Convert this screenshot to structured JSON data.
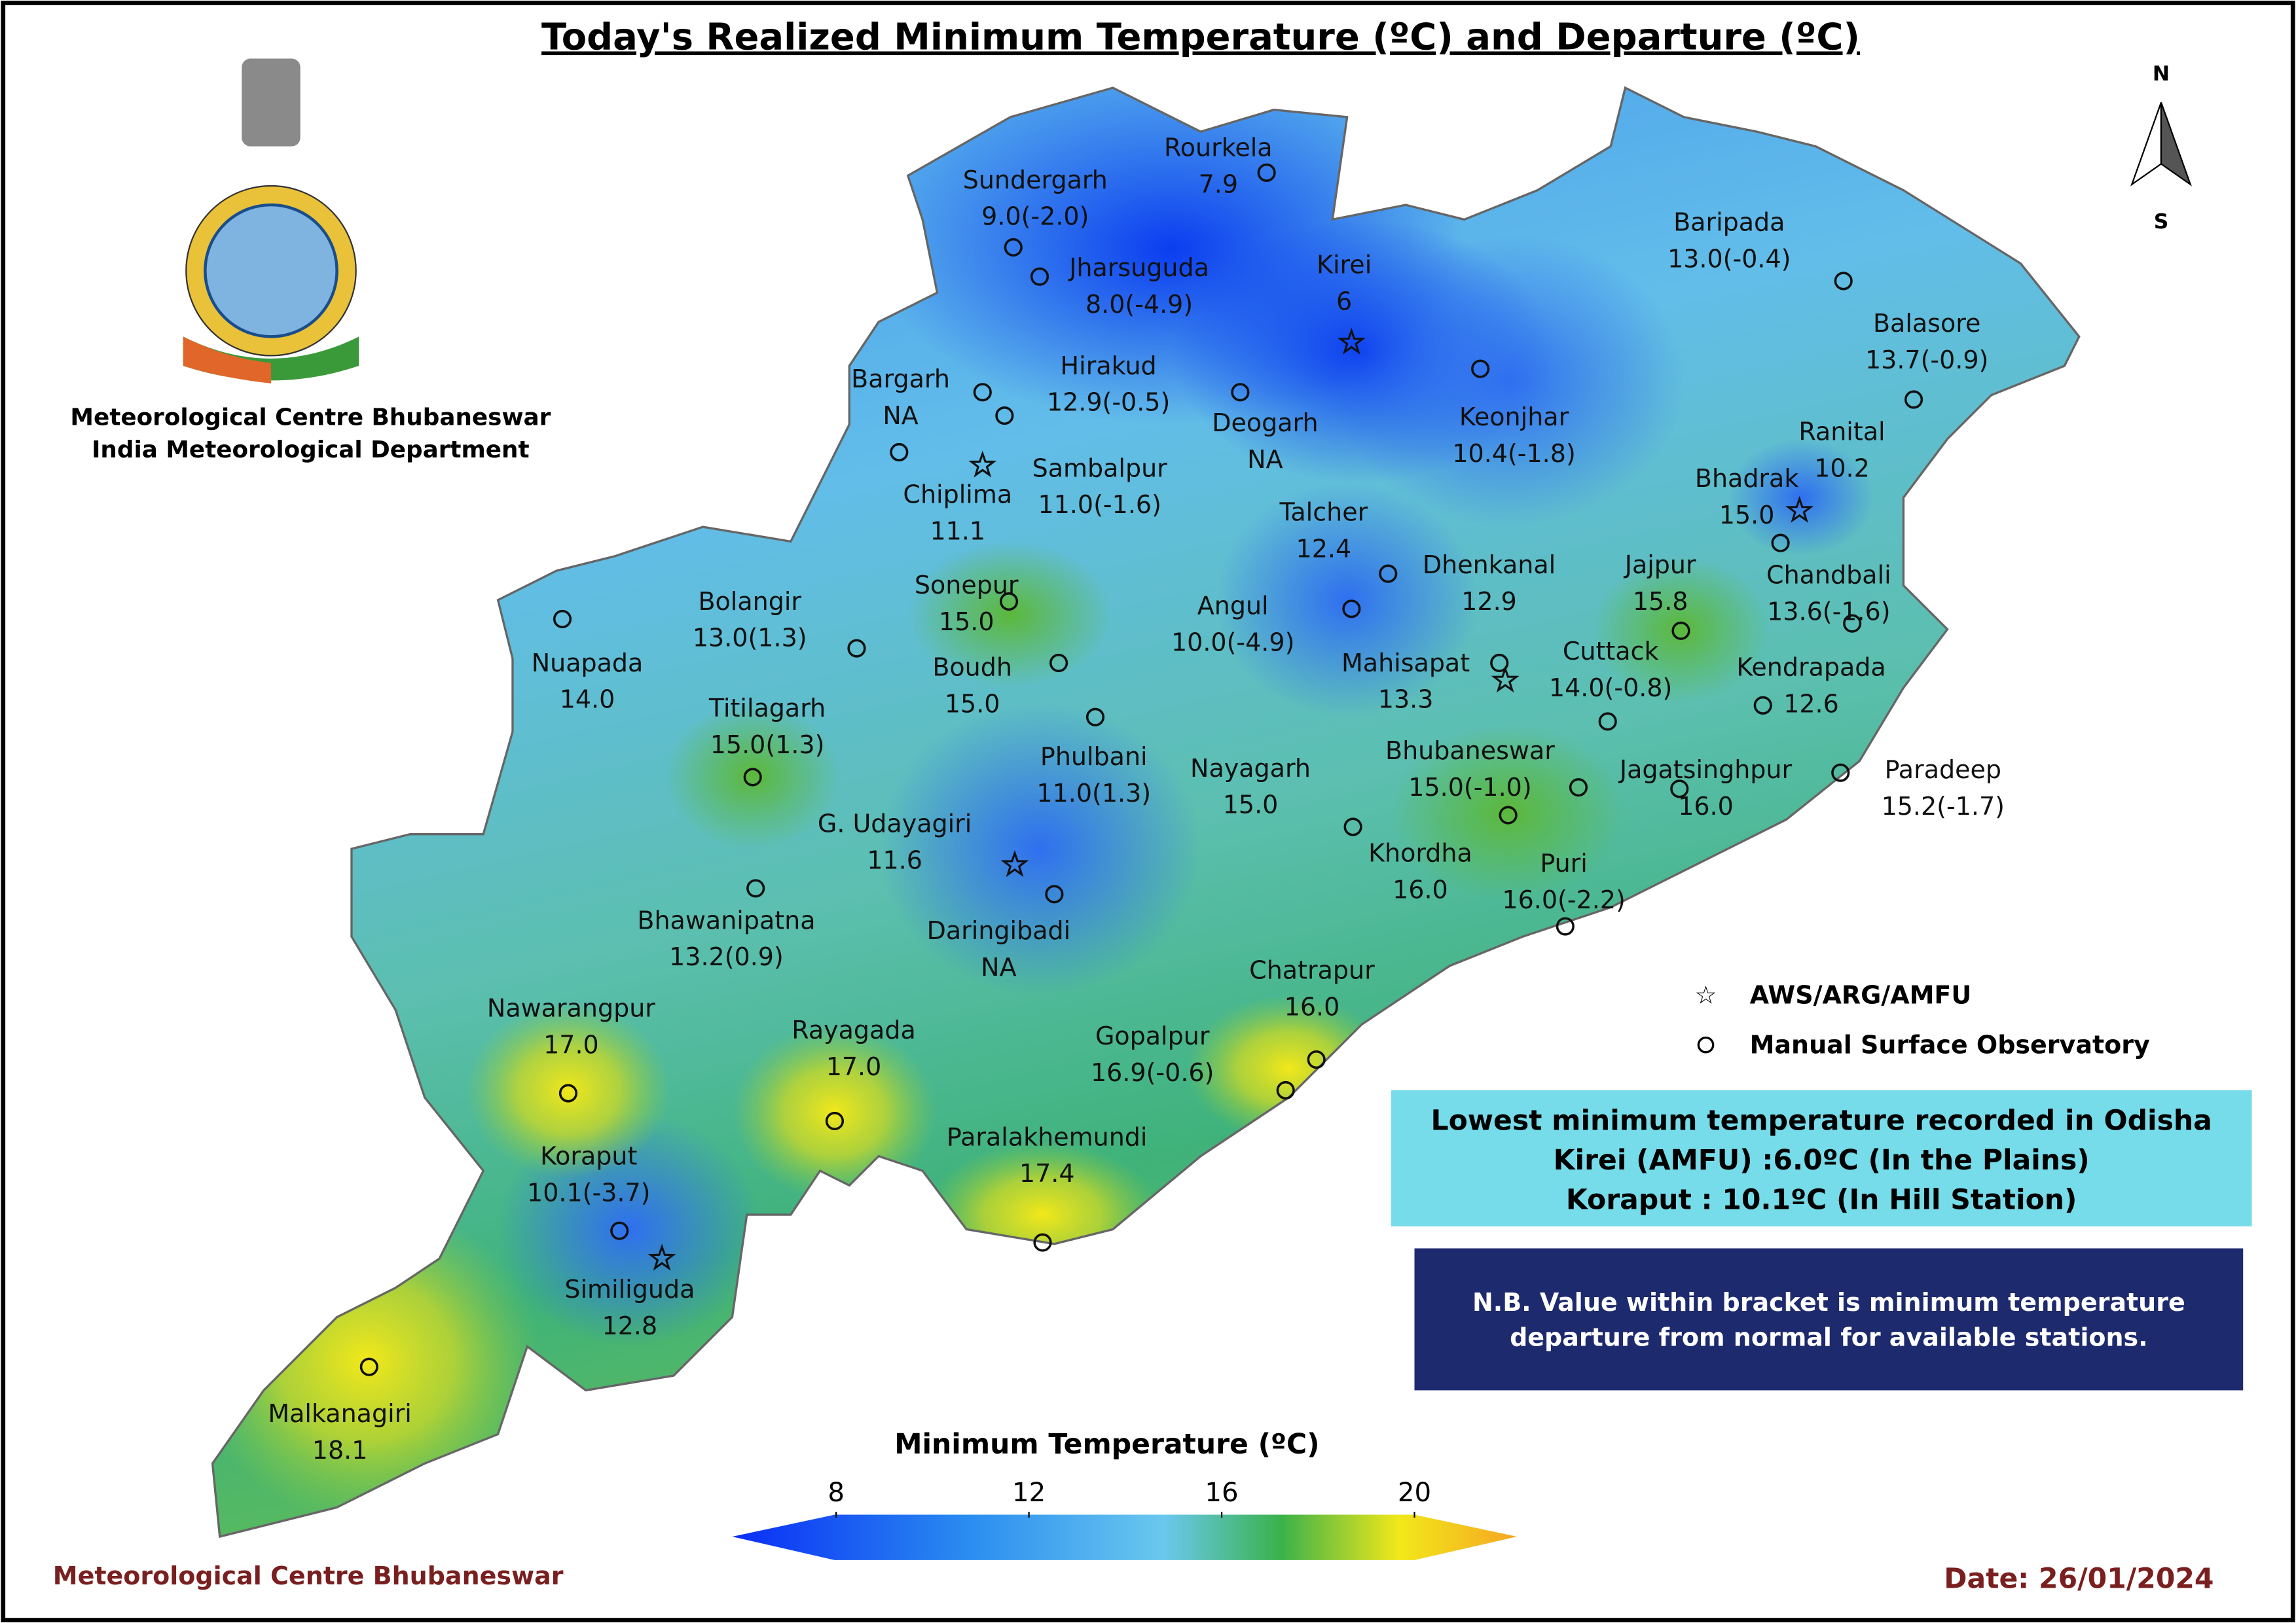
{
  "header": {
    "title": "Today's Realized Minimum Temperature (ºC) and Departure (ºC)"
  },
  "org": {
    "line1": "Meteorological Centre Bhubaneswar",
    "line2": "India Meteorological Department"
  },
  "north_arrow": {
    "n": "N",
    "s": "S"
  },
  "stations": [
    {
      "name": "Sundergarh",
      "value": "9.0(-2.0)"
    },
    {
      "name": "Rourkela",
      "value": "7.9"
    },
    {
      "name": "Jharsuguda",
      "value": "8.0(-4.9)"
    },
    {
      "name": "Kirei",
      "value": "6"
    },
    {
      "name": "Baripada",
      "value": "13.0(-0.4)"
    },
    {
      "name": "Balasore",
      "value": "13.7(-0.9)"
    },
    {
      "name": "Hirakud",
      "value": "12.9(-0.5)"
    },
    {
      "name": "Bargarh",
      "value": "NA"
    },
    {
      "name": "Deogarh",
      "value": "NA"
    },
    {
      "name": "Keonjhar",
      "value": "10.4(-1.8)"
    },
    {
      "name": "Ranital",
      "value": "10.2"
    },
    {
      "name": "Chiplima",
      "value": "11.1"
    },
    {
      "name": "Sambalpur",
      "value": "11.0(-1.6)"
    },
    {
      "name": "Bhadrak",
      "value": "15.0"
    },
    {
      "name": "Talcher",
      "value": "12.4"
    },
    {
      "name": "Dhenkanal",
      "value": "12.9"
    },
    {
      "name": "Jajpur",
      "value": "15.8"
    },
    {
      "name": "Chandbali",
      "value": "13.6(-1.6)"
    },
    {
      "name": "Sonepur",
      "value": "15.0"
    },
    {
      "name": "Bolangir",
      "value": "13.0(1.3)"
    },
    {
      "name": "Angul",
      "value": "10.0(-4.9)"
    },
    {
      "name": "Nuapada",
      "value": "14.0"
    },
    {
      "name": "Boudh",
      "value": "15.0"
    },
    {
      "name": "Mahisapat",
      "value": "13.3"
    },
    {
      "name": "Cuttack",
      "value": "14.0(-0.8)"
    },
    {
      "name": "Kendrapada",
      "value": "12.6"
    },
    {
      "name": "Titilagarh",
      "value": "15.0(1.3)"
    },
    {
      "name": "Phulbani",
      "value": "11.0(1.3)"
    },
    {
      "name": "Nayagarh",
      "value": "15.0"
    },
    {
      "name": "Bhubaneswar",
      "value": "15.0(-1.0)"
    },
    {
      "name": "Jagatsinghpur",
      "value": "16.0"
    },
    {
      "name": "Paradeep",
      "value": "15.2(-1.7)"
    },
    {
      "name": "G. Udayagiri",
      "value": "11.6"
    },
    {
      "name": "Khordha",
      "value": "16.0"
    },
    {
      "name": "Puri",
      "value": "16.0(-2.2)"
    },
    {
      "name": "Bhawanipatna",
      "value": "13.2(0.9)"
    },
    {
      "name": "Daringibadi",
      "value": "NA"
    },
    {
      "name": "Chatrapur",
      "value": "16.0"
    },
    {
      "name": "Nawarangpur",
      "value": "17.0"
    },
    {
      "name": "Rayagada",
      "value": "17.0"
    },
    {
      "name": "Gopalpur",
      "value": "16.9(-0.6)"
    },
    {
      "name": "Paralakhemundi",
      "value": "17.4"
    },
    {
      "name": "Koraput",
      "value": "10.1(-3.7)"
    },
    {
      "name": "Similiguda",
      "value": "12.8"
    },
    {
      "name": "Malkanagiri",
      "value": "18.1"
    }
  ],
  "legend": {
    "items": [
      "AWS/ARG/AMFU",
      "Manual Surface Observatory"
    ]
  },
  "highlight": {
    "lines": [
      "Lowest minimum temperature recorded in Odisha",
      "Kirei (AMFU) :6.0ºC (In the Plains)",
      "Koraput : 10.1ºC (In Hill Station)"
    ]
  },
  "note": {
    "lines": [
      "N.B. Value within bracket is minimum temperature",
      "departure from normal for available stations."
    ]
  },
  "colorbar": {
    "title": "Minimum Temperature (ºC)",
    "ticks": [
      8,
      12,
      16,
      20
    ]
  },
  "footer": {
    "left": "Meteorological Centre Bhubaneswar",
    "date": "Date: 26/01/2024"
  }
}
